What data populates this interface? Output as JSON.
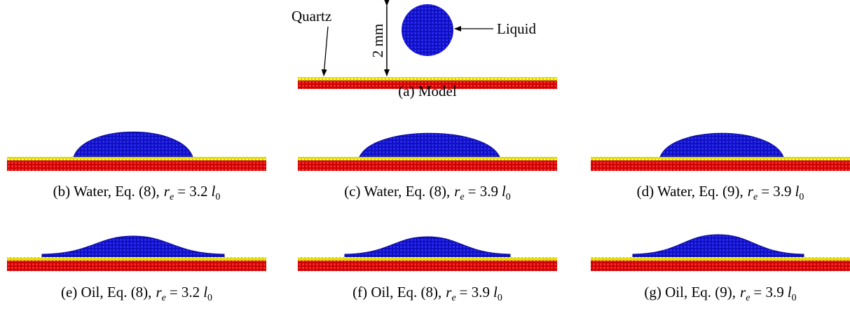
{
  "model": {
    "labels": {
      "quartz": "Quartz",
      "liquid": "Liquid",
      "height": "2 mm"
    },
    "caption": "(a) Model"
  },
  "panels": [
    {
      "caption": {
        "prefix": "(b) Water, Eq. (8),",
        "symbol": "r",
        "symbol_subscript": "e",
        "value": "= 3.2",
        "unit": "l",
        "unit_subscript": "0"
      }
    },
    {
      "caption": {
        "prefix": "(c) Water, Eq. (8),",
        "symbol": "r",
        "symbol_subscript": "e",
        "value": "= 3.9",
        "unit": "l",
        "unit_subscript": "0"
      }
    },
    {
      "caption": {
        "prefix": "(d) Water, Eq. (9),",
        "symbol": "r",
        "symbol_subscript": "e",
        "value": "= 3.9",
        "unit": "l",
        "unit_subscript": "0"
      }
    },
    {
      "caption": {
        "prefix": "(e) Oil, Eq. (8),",
        "symbol": "r",
        "symbol_subscript": "e",
        "value": "= 3.2",
        "unit": "l",
        "unit_subscript": "0"
      }
    },
    {
      "caption": {
        "prefix": "(f) Oil, Eq. (8),",
        "symbol": "r",
        "symbol_subscript": "e",
        "value": "= 3.9",
        "unit": "l",
        "unit_subscript": "0"
      }
    },
    {
      "caption": {
        "prefix": "(g) Oil, Eq. (9),",
        "symbol": "r",
        "symbol_subscript": "e",
        "value": "= 3.9",
        "unit": "l",
        "unit_subscript": "0"
      }
    }
  ]
}
